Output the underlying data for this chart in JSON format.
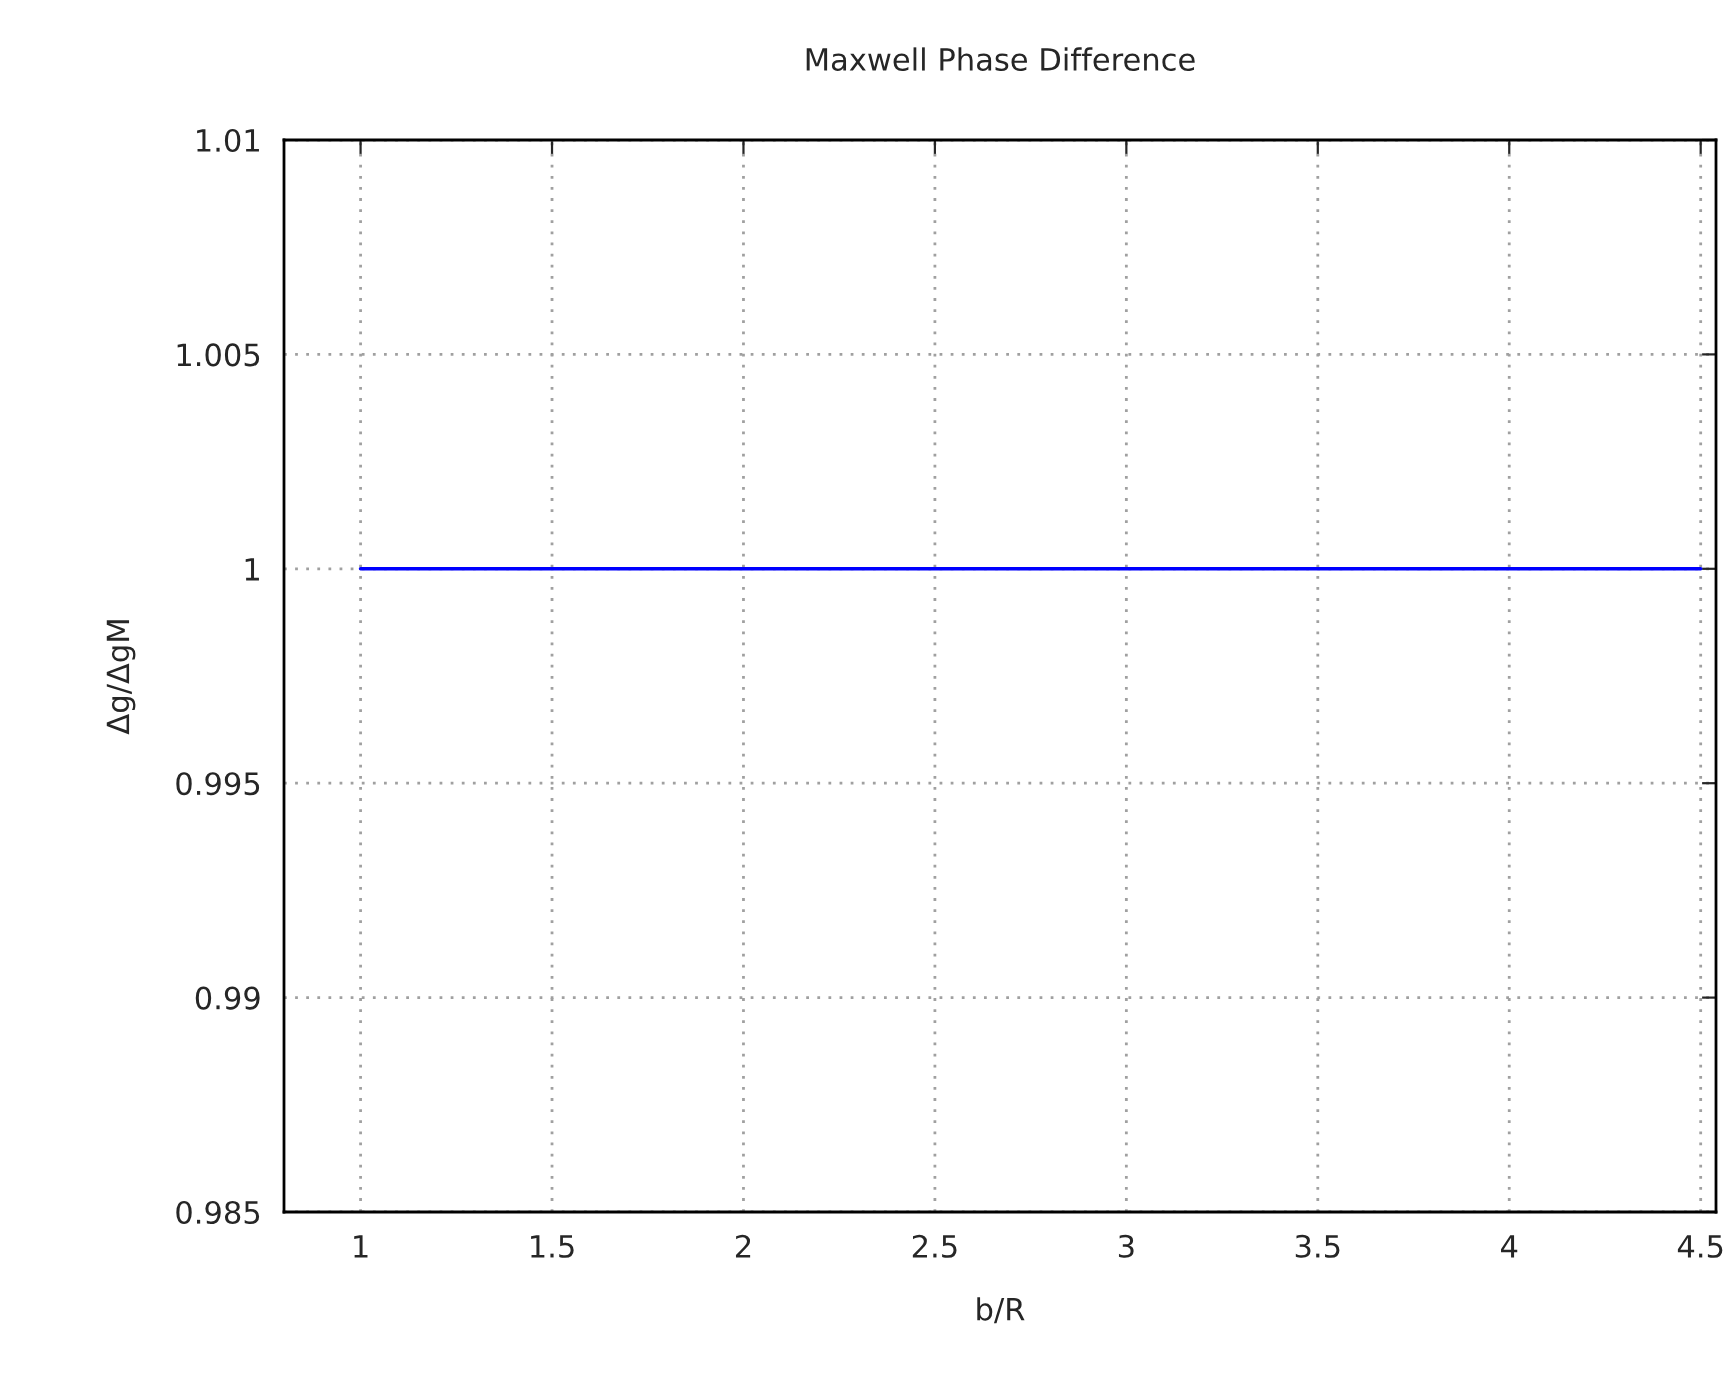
{
  "chart_data": {
    "type": "line",
    "title": "Maxwell Phase Difference",
    "xlabel": "b/R",
    "ylabel": "Δg/ΔgM",
    "x": [
      1,
      4.5
    ],
    "series": [
      {
        "color": "#0000ff",
        "values": [
          1,
          1
        ]
      }
    ],
    "xlim": [
      0.8,
      4.54
    ],
    "xticks": [
      1,
      1.5,
      2,
      2.5,
      3,
      3.5,
      4,
      4.5
    ],
    "ylim": [
      0.985,
      1.01
    ],
    "yticks": [
      0.985,
      0.99,
      0.995,
      1,
      1.005,
      1.01
    ],
    "grid": true,
    "line_style": "solid",
    "marker": "none"
  }
}
